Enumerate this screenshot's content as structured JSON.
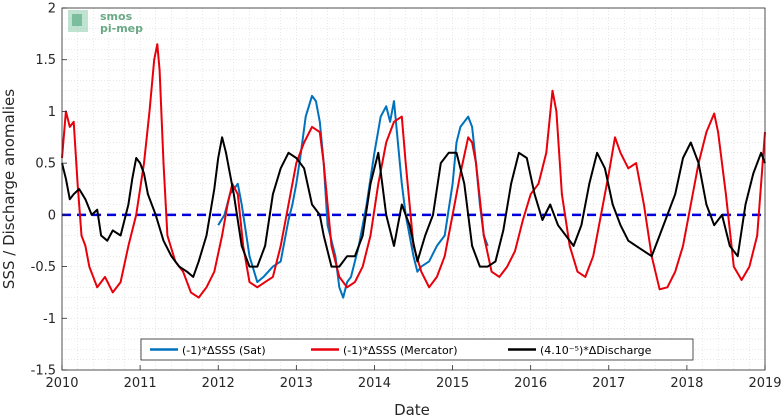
{
  "logo": {
    "line1": "smos",
    "line2": "pi-mep"
  },
  "chart_data": {
    "type": "line",
    "xlabel": "Date",
    "ylabel": "SSS / Discharge anomalies",
    "xlim": [
      2010,
      2019
    ],
    "ylim": [
      -1.5,
      2
    ],
    "x_ticks": [
      "2010",
      "2011",
      "2012",
      "2013",
      "2014",
      "2015",
      "2016",
      "2017",
      "2018",
      "2019"
    ],
    "y_ticks": [
      "-1.5",
      "-1",
      "-0.5",
      "0",
      "0.5",
      "1",
      "1.5",
      "2"
    ],
    "grid": true,
    "legend_position": "bottom-center",
    "zero_line": {
      "y": 0,
      "color": "#0000dd",
      "style": "dashed"
    },
    "series": [
      {
        "name": "(-1)*ΔSSS (Sat)",
        "color": "#0072bd",
        "x": [
          2012.0,
          2012.08,
          2012.15,
          2012.25,
          2012.3,
          2012.4,
          2012.5,
          2012.58,
          2012.7,
          2012.8,
          2012.9,
          2012.95,
          2013.0,
          2013.05,
          2013.12,
          2013.2,
          2013.25,
          2013.3,
          2013.35,
          2013.4,
          2013.5,
          2013.55,
          2013.6,
          2013.65,
          2013.7,
          2013.8,
          2013.9,
          2014.0,
          2014.08,
          2014.15,
          2014.2,
          2014.25,
          2014.3,
          2014.35,
          2014.4,
          2014.5,
          2014.55,
          2014.6,
          2014.7,
          2014.8,
          2014.9,
          2015.0,
          2015.05,
          2015.1,
          2015.2,
          2015.25,
          2015.3,
          2015.35,
          2015.4,
          2015.45
        ],
        "y": [
          -0.1,
          0.0,
          0.2,
          0.3,
          0.1,
          -0.4,
          -0.65,
          -0.6,
          -0.5,
          -0.45,
          -0.05,
          0.1,
          0.3,
          0.55,
          0.95,
          1.15,
          1.1,
          0.9,
          0.5,
          -0.1,
          -0.4,
          -0.7,
          -0.8,
          -0.65,
          -0.6,
          -0.3,
          0.1,
          0.6,
          0.95,
          1.05,
          0.9,
          1.1,
          0.7,
          0.3,
          0.0,
          -0.4,
          -0.55,
          -0.5,
          -0.45,
          -0.3,
          -0.2,
          0.3,
          0.7,
          0.85,
          0.95,
          0.85,
          0.5,
          0.1,
          -0.2,
          -0.3
        ]
      },
      {
        "name": "(-1)*ΔSSS (Mercator)",
        "color": "#e8000b",
        "x": [
          2010.0,
          2010.05,
          2010.1,
          2010.15,
          2010.2,
          2010.25,
          2010.3,
          2010.35,
          2010.45,
          2010.55,
          2010.65,
          2010.75,
          2010.85,
          2010.95,
          2011.05,
          2011.12,
          2011.18,
          2011.22,
          2011.25,
          2011.3,
          2011.35,
          2011.45,
          2011.55,
          2011.65,
          2011.75,
          2011.85,
          2011.95,
          2012.05,
          2012.12,
          2012.18,
          2012.25,
          2012.32,
          2012.4,
          2012.5,
          2012.6,
          2012.7,
          2012.8,
          2012.9,
          2013.0,
          2013.1,
          2013.2,
          2013.3,
          2013.35,
          2013.45,
          2013.55,
          2013.65,
          2013.75,
          2013.85,
          2013.95,
          2014.05,
          2014.15,
          2014.25,
          2014.35,
          2014.4,
          2014.5,
          2014.6,
          2014.7,
          2014.8,
          2014.9,
          2015.0,
          2015.1,
          2015.2,
          2015.25,
          2015.3,
          2015.4,
          2015.5,
          2015.6,
          2015.7,
          2015.8,
          2015.9,
          2016.0,
          2016.1,
          2016.2,
          2016.28,
          2016.33,
          2016.4,
          2016.5,
          2016.6,
          2016.7,
          2016.8,
          2016.9,
          2017.0,
          2017.08,
          2017.15,
          2017.25,
          2017.35,
          2017.45,
          2017.55,
          2017.65,
          2017.75,
          2017.85,
          2017.95,
          2018.05,
          2018.15,
          2018.25,
          2018.35,
          2018.4,
          2018.5,
          2018.6,
          2018.7,
          2018.8,
          2018.9,
          2019.0
        ],
        "y": [
          0.55,
          1.0,
          0.85,
          0.9,
          0.3,
          -0.2,
          -0.3,
          -0.5,
          -0.7,
          -0.6,
          -0.75,
          -0.65,
          -0.3,
          0.0,
          0.5,
          1.0,
          1.5,
          1.65,
          1.4,
          0.5,
          -0.2,
          -0.45,
          -0.55,
          -0.75,
          -0.8,
          -0.7,
          -0.55,
          -0.2,
          0.1,
          0.3,
          0.2,
          -0.3,
          -0.65,
          -0.7,
          -0.65,
          -0.6,
          -0.3,
          0.1,
          0.5,
          0.7,
          0.85,
          0.8,
          0.5,
          -0.3,
          -0.6,
          -0.7,
          -0.65,
          -0.5,
          -0.2,
          0.3,
          0.7,
          0.9,
          0.95,
          0.5,
          -0.3,
          -0.55,
          -0.7,
          -0.6,
          -0.4,
          0.0,
          0.4,
          0.75,
          0.7,
          0.5,
          -0.2,
          -0.55,
          -0.6,
          -0.5,
          -0.35,
          -0.05,
          0.2,
          0.3,
          0.6,
          1.2,
          1.0,
          0.2,
          -0.3,
          -0.55,
          -0.6,
          -0.4,
          0.0,
          0.4,
          0.75,
          0.6,
          0.45,
          0.5,
          0.1,
          -0.4,
          -0.72,
          -0.7,
          -0.55,
          -0.3,
          0.1,
          0.5,
          0.8,
          0.98,
          0.8,
          0.2,
          -0.5,
          -0.63,
          -0.5,
          -0.2,
          0.8
        ]
      },
      {
        "name": "(4.10⁻⁵)*ΔDischarge",
        "color": "#000000",
        "x": [
          2010.0,
          2010.05,
          2010.1,
          2010.15,
          2010.22,
          2010.3,
          2010.38,
          2010.45,
          2010.5,
          2010.58,
          2010.65,
          2010.75,
          2010.85,
          2010.9,
          2010.95,
          2011.0,
          2011.05,
          2011.1,
          2011.2,
          2011.3,
          2011.4,
          2011.5,
          2011.6,
          2011.68,
          2011.75,
          2011.85,
          2011.95,
          2012.0,
          2012.05,
          2012.1,
          2012.2,
          2012.3,
          2012.4,
          2012.5,
          2012.6,
          2012.7,
          2012.8,
          2012.9,
          2013.0,
          2013.1,
          2013.2,
          2013.3,
          2013.35,
          2013.45,
          2013.55,
          2013.65,
          2013.75,
          2013.85,
          2013.95,
          2014.05,
          2014.15,
          2014.25,
          2014.35,
          2014.45,
          2014.55,
          2014.65,
          2014.75,
          2014.85,
          2014.95,
          2015.05,
          2015.15,
          2015.25,
          2015.35,
          2015.45,
          2015.55,
          2015.65,
          2015.75,
          2015.85,
          2015.95,
          2016.05,
          2016.15,
          2016.25,
          2016.35,
          2016.45,
          2016.55,
          2016.65,
          2016.75,
          2016.85,
          2016.95,
          2017.05,
          2017.15,
          2017.25,
          2017.35,
          2017.45,
          2017.55,
          2017.65,
          2017.75,
          2017.85,
          2017.95,
          2018.05,
          2018.15,
          2018.25,
          2018.35,
          2018.45,
          2018.55,
          2018.65,
          2018.75,
          2018.85,
          2018.95,
          2019.0
        ],
        "y": [
          0.5,
          0.35,
          0.15,
          0.2,
          0.25,
          0.15,
          0.0,
          0.05,
          -0.2,
          -0.25,
          -0.15,
          -0.2,
          0.1,
          0.35,
          0.55,
          0.5,
          0.4,
          0.2,
          0.0,
          -0.25,
          -0.4,
          -0.5,
          -0.55,
          -0.6,
          -0.45,
          -0.2,
          0.25,
          0.55,
          0.75,
          0.6,
          0.2,
          -0.3,
          -0.5,
          -0.5,
          -0.3,
          0.2,
          0.45,
          0.6,
          0.55,
          0.45,
          0.1,
          0.0,
          -0.2,
          -0.5,
          -0.5,
          -0.4,
          -0.4,
          -0.2,
          0.3,
          0.6,
          0.0,
          -0.3,
          0.1,
          -0.1,
          -0.45,
          -0.2,
          0.0,
          0.5,
          0.6,
          0.6,
          0.3,
          -0.3,
          -0.5,
          -0.5,
          -0.45,
          -0.15,
          0.3,
          0.6,
          0.55,
          0.2,
          -0.05,
          0.1,
          -0.1,
          -0.2,
          -0.3,
          -0.1,
          0.3,
          0.6,
          0.45,
          0.1,
          -0.1,
          -0.25,
          -0.3,
          -0.35,
          -0.4,
          -0.2,
          0.0,
          0.2,
          0.55,
          0.7,
          0.5,
          0.1,
          -0.1,
          0.0,
          -0.3,
          -0.4,
          0.1,
          0.4,
          0.6,
          0.5
        ]
      }
    ]
  }
}
